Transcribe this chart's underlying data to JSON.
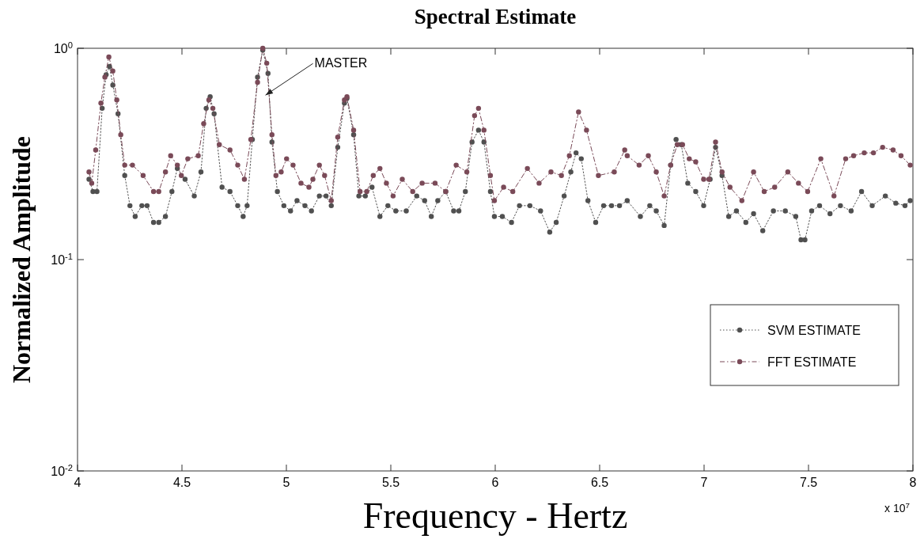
{
  "chart_data": {
    "type": "line",
    "title": "Spectral Estimate",
    "xlabel": "Frequency - Hertz",
    "ylabel": "Normalized Amplitude",
    "annotations": [
      {
        "text": "MASTER",
        "x": 4.9,
        "y": 0.6
      },
      "x 10$^{7}$"
    ],
    "log": "y",
    "grid": false,
    "legend": "bottom right",
    "marker": "circle",
    "xlim": [
      4,
      8
    ],
    "ylim": [
      0.01,
      1
    ],
    "xticks": [
      4,
      4.5,
      5,
      5.5,
      6,
      6.5,
      7,
      7.5,
      8
    ],
    "yticks": [
      {
        "value": 0.01,
        "label": "10$^{-2}$"
      },
      {
        "value": 0.1,
        "label": "10$^{-1}$"
      },
      {
        "value": 1,
        "label": "10$^{0}$"
      }
    ],
    "series": [
      {
        "name": "SVM ESTIMATE",
        "color": "#505050",
        "line_style": "dotted",
        "x": [
          4.055,
          4.074,
          4.093,
          4.118,
          4.137,
          4.153,
          4.169,
          4.194,
          4.226,
          4.251,
          4.276,
          4.308,
          4.333,
          4.364,
          4.389,
          4.421,
          4.452,
          4.478,
          4.515,
          4.559,
          4.591,
          4.616,
          4.635,
          4.654,
          4.692,
          4.73,
          4.767,
          4.793,
          4.812,
          4.837,
          4.862,
          4.887,
          4.912,
          4.931,
          4.957,
          4.988,
          5.02,
          5.051,
          5.089,
          5.12,
          5.158,
          5.19,
          5.215,
          5.246,
          5.278,
          5.29,
          5.322,
          5.347,
          5.378,
          5.41,
          5.448,
          5.486,
          5.524,
          5.574,
          5.624,
          5.662,
          5.694,
          5.725,
          5.763,
          5.801,
          5.826,
          5.857,
          5.889,
          5.92,
          5.946,
          5.977,
          5.996,
          6.034,
          6.078,
          6.116,
          6.166,
          6.217,
          6.261,
          6.292,
          6.33,
          6.362,
          6.387,
          6.412,
          6.444,
          6.481,
          6.519,
          6.557,
          6.595,
          6.632,
          6.695,
          6.74,
          6.771,
          6.809,
          6.84,
          6.866,
          6.891,
          6.922,
          6.96,
          6.998,
          7.029,
          7.055,
          7.086,
          7.118,
          7.155,
          7.2,
          7.237,
          7.281,
          7.332,
          7.389,
          7.439,
          7.464,
          7.483,
          7.515,
          7.553,
          7.603,
          7.653,
          7.704,
          7.754,
          7.805,
          7.868,
          7.918,
          7.962,
          7.987
        ],
        "values": [
          0.24,
          0.21,
          0.21,
          0.52,
          0.75,
          0.82,
          0.67,
          0.49,
          0.25,
          0.18,
          0.16,
          0.18,
          0.18,
          0.15,
          0.15,
          0.16,
          0.21,
          0.27,
          0.24,
          0.2,
          0.26,
          0.52,
          0.59,
          0.49,
          0.22,
          0.21,
          0.18,
          0.16,
          0.18,
          0.37,
          0.73,
          0.98,
          0.76,
          0.36,
          0.21,
          0.18,
          0.17,
          0.19,
          0.18,
          0.17,
          0.2,
          0.2,
          0.18,
          0.34,
          0.55,
          0.58,
          0.39,
          0.2,
          0.2,
          0.22,
          0.16,
          0.18,
          0.17,
          0.17,
          0.2,
          0.19,
          0.16,
          0.19,
          0.21,
          0.17,
          0.17,
          0.21,
          0.36,
          0.41,
          0.36,
          0.21,
          0.16,
          0.16,
          0.15,
          0.18,
          0.18,
          0.17,
          0.135,
          0.15,
          0.2,
          0.26,
          0.32,
          0.3,
          0.19,
          0.15,
          0.18,
          0.18,
          0.18,
          0.19,
          0.16,
          0.18,
          0.17,
          0.145,
          0.28,
          0.37,
          0.35,
          0.23,
          0.21,
          0.18,
          0.24,
          0.34,
          0.25,
          0.16,
          0.17,
          0.15,
          0.165,
          0.137,
          0.17,
          0.17,
          0.16,
          0.124,
          0.124,
          0.17,
          0.18,
          0.165,
          0.18,
          0.17,
          0.21,
          0.18,
          0.2,
          0.185,
          0.18,
          0.19
        ]
      },
      {
        "name": "FFT ESTIMATE",
        "color": "#7a4a58",
        "line_style": "dashed",
        "x": [
          4.055,
          4.068,
          4.087,
          4.112,
          4.131,
          4.15,
          4.169,
          4.188,
          4.207,
          4.226,
          4.263,
          4.314,
          4.364,
          4.389,
          4.421,
          4.446,
          4.478,
          4.497,
          4.528,
          4.578,
          4.604,
          4.629,
          4.648,
          4.679,
          4.73,
          4.767,
          4.799,
          4.83,
          4.862,
          4.887,
          4.906,
          4.931,
          4.95,
          4.975,
          5.001,
          5.032,
          5.07,
          5.108,
          5.127,
          5.158,
          5.183,
          5.215,
          5.246,
          5.278,
          5.29,
          5.322,
          5.353,
          5.385,
          5.416,
          5.448,
          5.479,
          5.511,
          5.555,
          5.605,
          5.65,
          5.712,
          5.763,
          5.813,
          5.864,
          5.901,
          5.92,
          5.946,
          5.977,
          5.996,
          6.04,
          6.084,
          6.154,
          6.21,
          6.267,
          6.317,
          6.355,
          6.399,
          6.437,
          6.494,
          6.57,
          6.62,
          6.632,
          6.689,
          6.733,
          6.771,
          6.809,
          6.84,
          6.872,
          6.897,
          6.929,
          6.96,
          6.998,
          7.023,
          7.055,
          7.086,
          7.124,
          7.181,
          7.237,
          7.288,
          7.338,
          7.401,
          7.452,
          7.496,
          7.559,
          7.622,
          7.678,
          7.716,
          7.767,
          7.811,
          7.855,
          7.905,
          7.943,
          7.987
        ],
        "values": [
          0.26,
          0.23,
          0.33,
          0.55,
          0.73,
          0.91,
          0.78,
          0.57,
          0.39,
          0.28,
          0.28,
          0.25,
          0.21,
          0.21,
          0.26,
          0.31,
          0.28,
          0.25,
          0.3,
          0.31,
          0.44,
          0.57,
          0.52,
          0.35,
          0.33,
          0.28,
          0.24,
          0.37,
          0.69,
          1.0,
          0.85,
          0.39,
          0.25,
          0.26,
          0.3,
          0.28,
          0.23,
          0.22,
          0.24,
          0.28,
          0.25,
          0.19,
          0.38,
          0.57,
          0.59,
          0.41,
          0.21,
          0.21,
          0.25,
          0.27,
          0.23,
          0.2,
          0.24,
          0.21,
          0.23,
          0.23,
          0.21,
          0.28,
          0.26,
          0.48,
          0.52,
          0.41,
          0.25,
          0.19,
          0.22,
          0.21,
          0.27,
          0.23,
          0.26,
          0.25,
          0.31,
          0.5,
          0.41,
          0.25,
          0.26,
          0.33,
          0.31,
          0.28,
          0.31,
          0.26,
          0.2,
          0.28,
          0.35,
          0.35,
          0.3,
          0.29,
          0.24,
          0.24,
          0.36,
          0.26,
          0.22,
          0.19,
          0.26,
          0.21,
          0.22,
          0.26,
          0.23,
          0.21,
          0.3,
          0.2,
          0.3,
          0.31,
          0.32,
          0.32,
          0.34,
          0.33,
          0.31,
          0.28
        ]
      }
    ]
  }
}
